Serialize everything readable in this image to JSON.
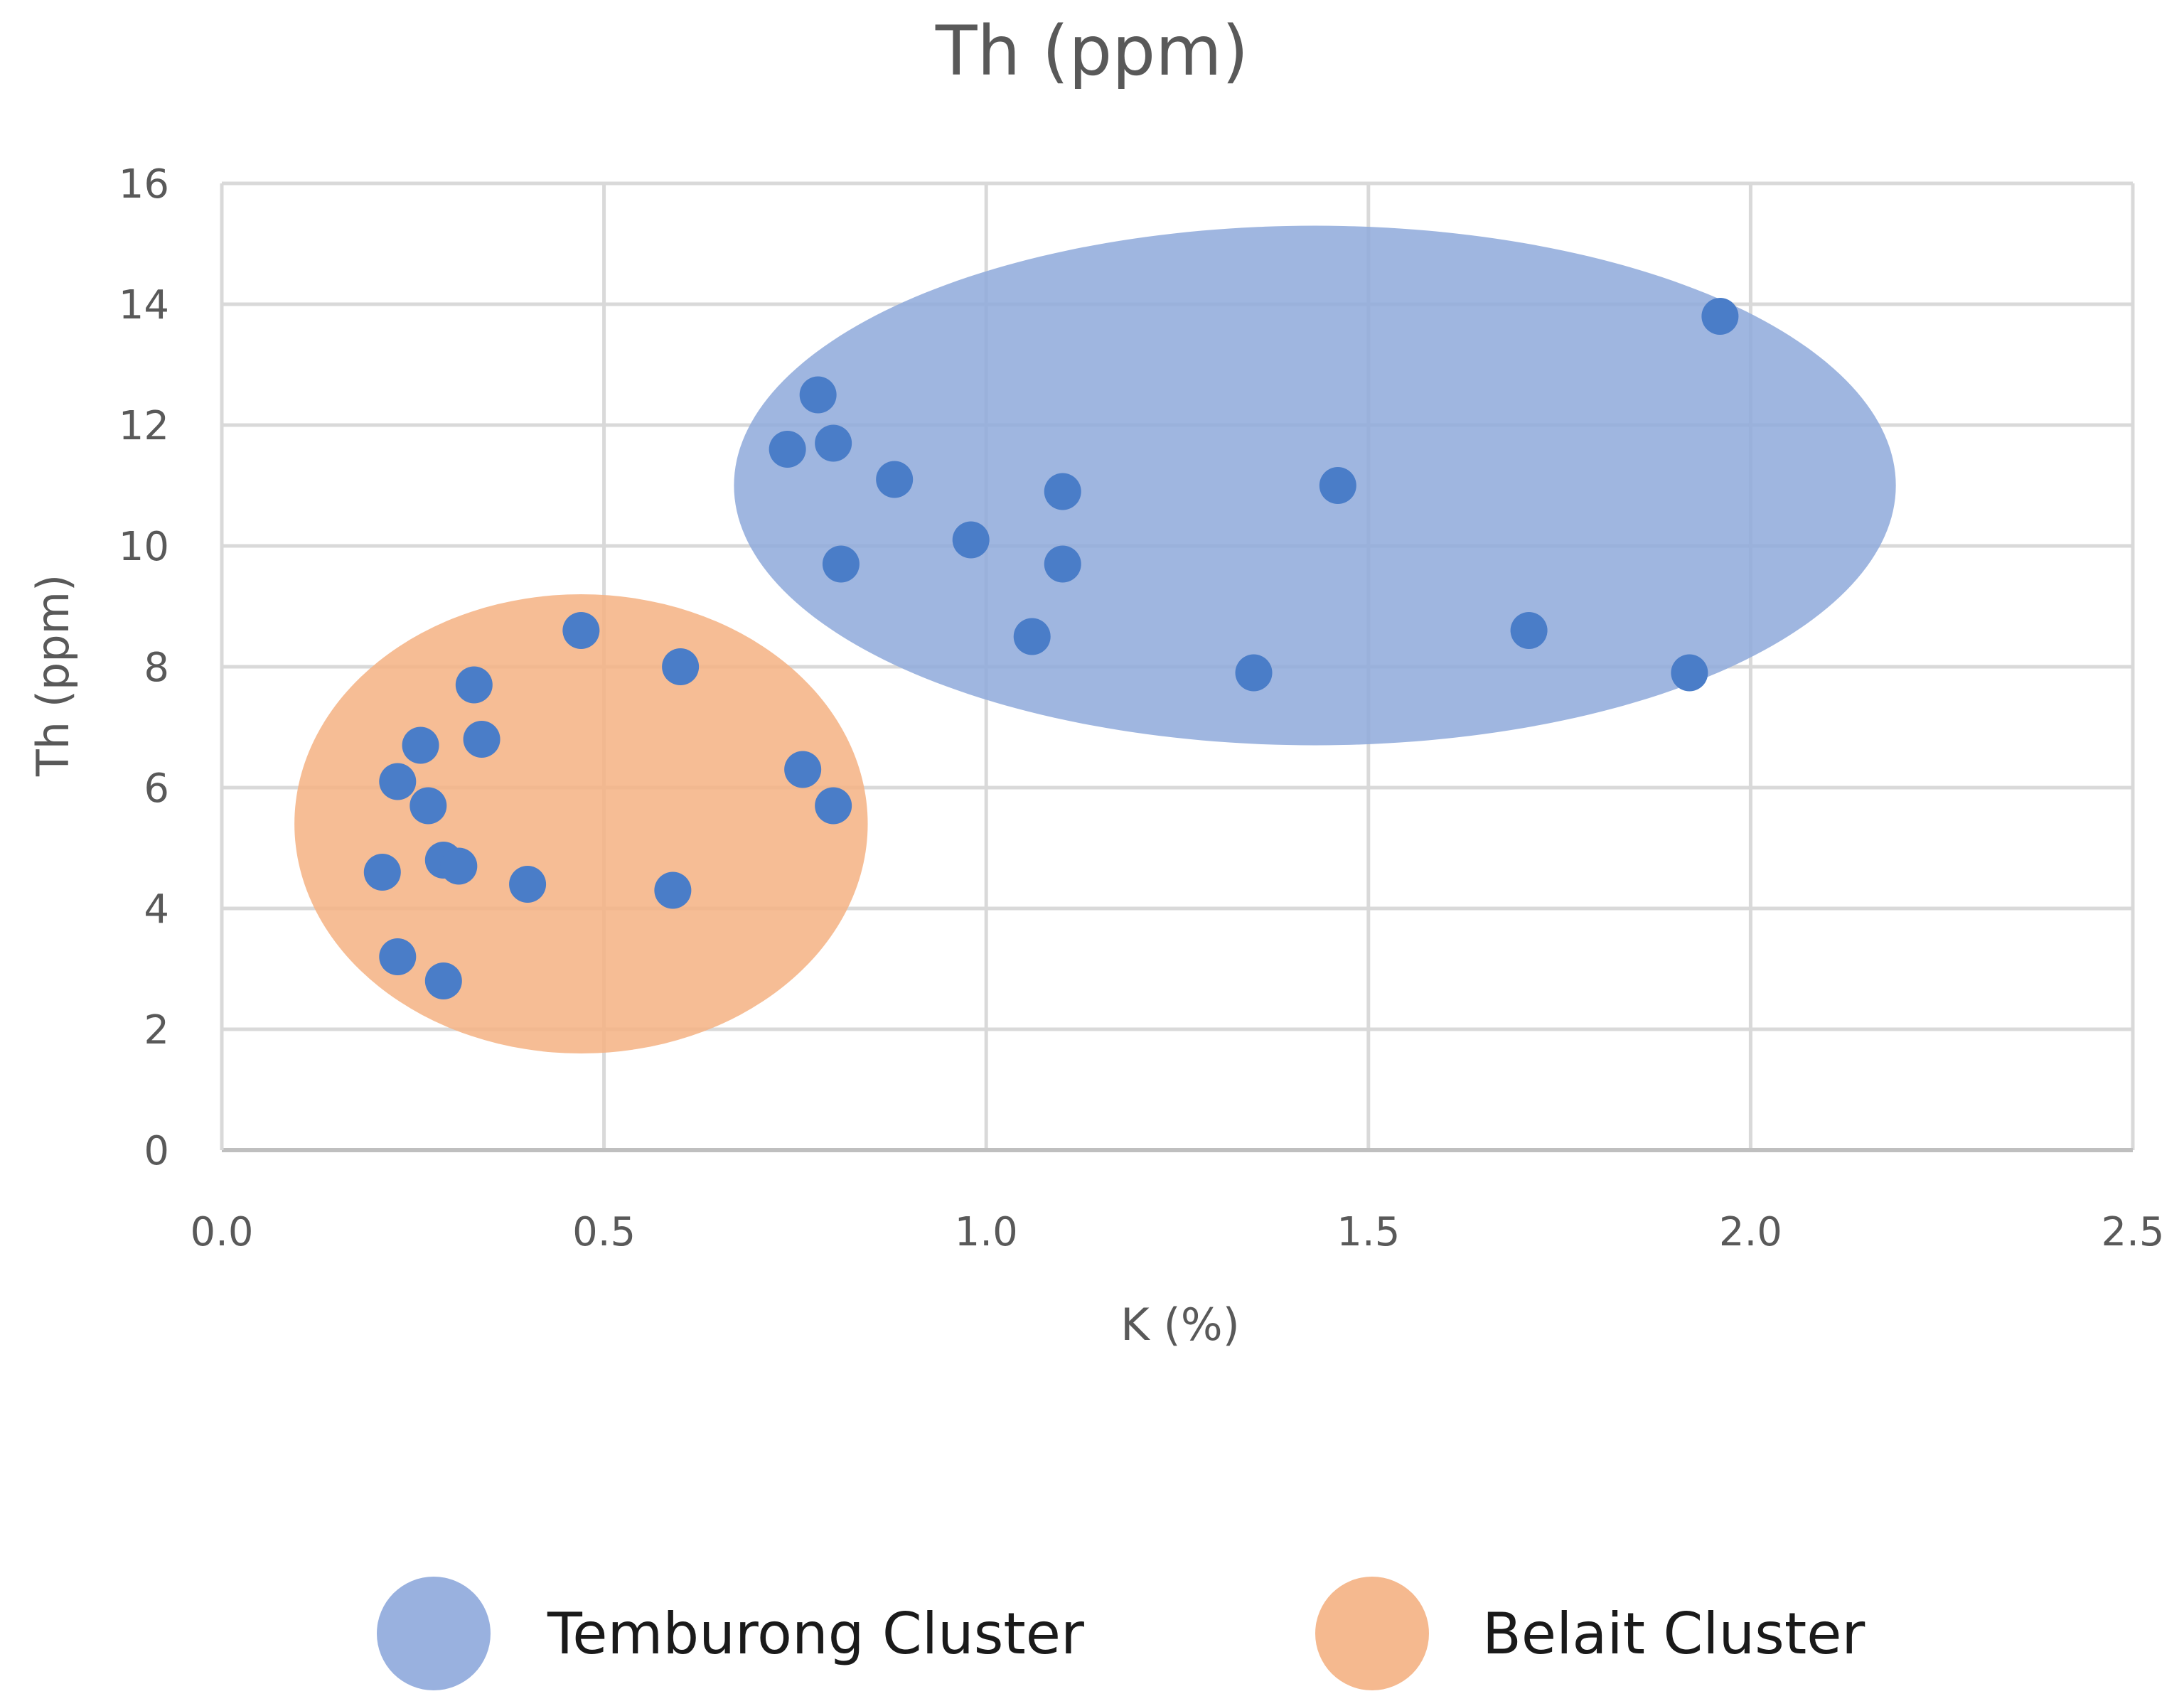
{
  "chart_data": {
    "type": "scatter",
    "title": "Th (ppm)",
    "xlabel": "K (%)",
    "ylabel": "Th (ppm)",
    "xlim": [
      0,
      2.5
    ],
    "ylim": [
      0,
      16
    ],
    "x_ticks": [
      "0.0",
      "0.5",
      "1.0",
      "1.5",
      "2.0",
      "2.5"
    ],
    "y_ticks": [
      "0",
      "2",
      "4",
      "6",
      "8",
      "10",
      "12",
      "14",
      "16"
    ],
    "grid": true,
    "point_color": "#4a7dc8",
    "series": [
      {
        "name": "Temburong",
        "points": [
          {
            "x": 0.74,
            "y": 11.6
          },
          {
            "x": 0.78,
            "y": 12.5
          },
          {
            "x": 0.8,
            "y": 11.7
          },
          {
            "x": 0.81,
            "y": 9.7
          },
          {
            "x": 0.88,
            "y": 11.1
          },
          {
            "x": 0.98,
            "y": 10.1
          },
          {
            "x": 1.06,
            "y": 8.5
          },
          {
            "x": 1.1,
            "y": 10.9
          },
          {
            "x": 1.1,
            "y": 9.7
          },
          {
            "x": 1.35,
            "y": 7.9
          },
          {
            "x": 1.46,
            "y": 11.0
          },
          {
            "x": 1.71,
            "y": 8.6
          },
          {
            "x": 1.92,
            "y": 7.9
          },
          {
            "x": 1.96,
            "y": 13.8
          }
        ]
      },
      {
        "name": "Belait",
        "points": [
          {
            "x": 0.21,
            "y": 4.6
          },
          {
            "x": 0.23,
            "y": 6.1
          },
          {
            "x": 0.23,
            "y": 3.2
          },
          {
            "x": 0.26,
            "y": 6.7
          },
          {
            "x": 0.27,
            "y": 5.7
          },
          {
            "x": 0.29,
            "y": 4.8
          },
          {
            "x": 0.29,
            "y": 2.8
          },
          {
            "x": 0.31,
            "y": 4.7
          },
          {
            "x": 0.33,
            "y": 7.7
          },
          {
            "x": 0.34,
            "y": 6.8
          },
          {
            "x": 0.4,
            "y": 4.4
          },
          {
            "x": 0.47,
            "y": 8.6
          },
          {
            "x": 0.59,
            "y": 4.3
          },
          {
            "x": 0.6,
            "y": 8.0
          },
          {
            "x": 0.76,
            "y": 6.3
          },
          {
            "x": 0.8,
            "y": 5.7
          }
        ]
      }
    ],
    "clusters": [
      {
        "name": "Temburong Cluster",
        "cx": 1.43,
        "cy": 11.0,
        "rx": 0.76,
        "ry": 4.3,
        "color": "#8ea9db",
        "opacity": 0.85
      },
      {
        "name": "Belait Cluster",
        "cx": 0.47,
        "cy": 5.4,
        "rx": 0.375,
        "ry": 3.8,
        "color": "#f4b183",
        "opacity": 0.85
      }
    ],
    "legend_position": "bottom"
  }
}
